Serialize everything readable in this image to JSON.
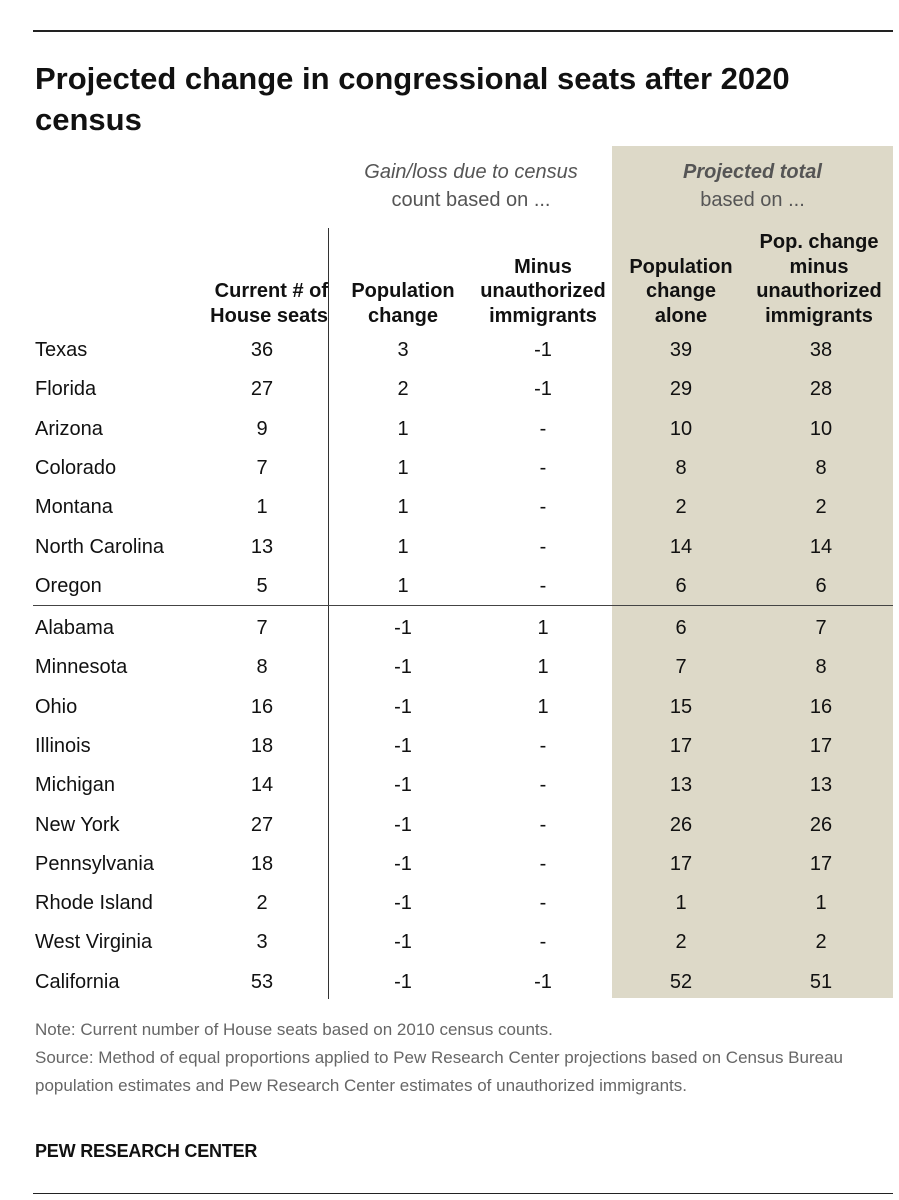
{
  "chart_data": {
    "type": "table",
    "title": "Projected change in congressional seats after 2020 census",
    "column_groups": [
      {
        "label_line1": "Gain/loss due to census",
        "label_line2": "count based on ..."
      },
      {
        "label_line1": "Projected total",
        "label_line2": "based on ..."
      }
    ],
    "columns": [
      {
        "key": "current",
        "label": [
          "Current # of",
          "House seats"
        ]
      },
      {
        "key": "pop_change",
        "label": [
          "Population",
          "change"
        ]
      },
      {
        "key": "minus_unauth",
        "label": [
          "Minus",
          "unauthorized",
          "immigrants"
        ]
      },
      {
        "key": "total_pop",
        "label": [
          "Population",
          "change",
          "alone"
        ]
      },
      {
        "key": "total_minus",
        "label": [
          "Pop. change",
          "minus",
          "unauthorized",
          "immigrants"
        ]
      }
    ],
    "rows": [
      {
        "state": "Texas",
        "values": [
          "36",
          "3",
          "-1",
          "39",
          "38"
        ]
      },
      {
        "state": "Florida",
        "values": [
          "27",
          "2",
          "-1",
          "29",
          "28"
        ]
      },
      {
        "state": "Arizona",
        "values": [
          "9",
          "1",
          "-",
          "10",
          "10"
        ]
      },
      {
        "state": "Colorado",
        "values": [
          "7",
          "1",
          "-",
          "8",
          "8"
        ]
      },
      {
        "state": "Montana",
        "values": [
          "1",
          "1",
          "-",
          "2",
          "2"
        ]
      },
      {
        "state": "North Carolina",
        "values": [
          "13",
          "1",
          "-",
          "14",
          "14"
        ]
      },
      {
        "state": "Oregon",
        "values": [
          "5",
          "1",
          "-",
          "6",
          "6"
        ]
      },
      {
        "state": "Alabama",
        "values": [
          "7",
          "-1",
          "1",
          "6",
          "7"
        ]
      },
      {
        "state": "Minnesota",
        "values": [
          "8",
          "-1",
          "1",
          "7",
          "8"
        ]
      },
      {
        "state": "Ohio",
        "values": [
          "16",
          "-1",
          "1",
          "15",
          "16"
        ]
      },
      {
        "state": "Illinois",
        "values": [
          "18",
          "-1",
          "-",
          "17",
          "17"
        ]
      },
      {
        "state": "Michigan",
        "values": [
          "14",
          "-1",
          "-",
          "13",
          "13"
        ]
      },
      {
        "state": "New York",
        "values": [
          "27",
          "-1",
          "-",
          "26",
          "26"
        ]
      },
      {
        "state": "Pennsylvania",
        "values": [
          "18",
          "-1",
          "-",
          "17",
          "17"
        ]
      },
      {
        "state": "Rhode Island",
        "values": [
          "2",
          "-1",
          "-",
          "1",
          "1"
        ]
      },
      {
        "state": "West Virginia",
        "values": [
          "3",
          "-1",
          "-",
          "2",
          "2"
        ]
      },
      {
        "state": "California",
        "values": [
          "53",
          "-1",
          "-1",
          "52",
          "51"
        ]
      }
    ],
    "colors": {
      "shade": "#ddd9c8",
      "text": "#111111",
      "muted": "#666666"
    }
  },
  "notes": {
    "note": "Note: Current number of House seats based on 2010 census counts.",
    "source": "Source: Method of equal proportions applied to Pew Research Center projections based on Census Bureau population estimates and Pew Research Center estimates of unauthorized immigrants."
  },
  "brand": "PEW RESEARCH CENTER"
}
